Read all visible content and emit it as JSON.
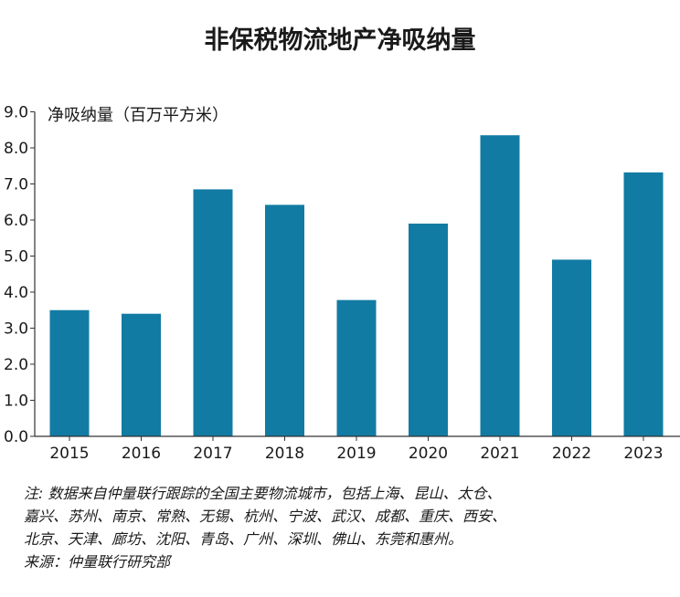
{
  "chart_data": {
    "type": "bar",
    "title": "非保税物流地产净吸纳量",
    "ylabel": "净吸纳量（百万平方米）",
    "xlabel": "",
    "categories": [
      "2015",
      "2016",
      "2017",
      "2018",
      "2019",
      "2020",
      "2021",
      "2022",
      "2023"
    ],
    "values": [
      3.5,
      3.4,
      6.85,
      6.42,
      3.78,
      5.9,
      8.35,
      4.9,
      7.32
    ],
    "ylim": [
      0,
      9
    ],
    "yticks": [
      "0.0",
      "1.0",
      "2.0",
      "3.0",
      "4.0",
      "5.0",
      "6.0",
      "7.0",
      "8.0",
      "9.0"
    ],
    "grid": false,
    "bar_color": "#127ba3"
  },
  "notes": {
    "line1": "注: 数据来自仲量联行跟踪的全国主要物流城市，包括上海、昆山、太仓、",
    "line2": "嘉兴、苏州、南京、常熟、无锡、杭州、宁波、武汉、成都、重庆、西安、",
    "line3": "北京、天津、廊坊、沈阳、青岛、广州、深圳、佛山、东莞和惠州。",
    "source": "来源：仲量联行研究部"
  }
}
